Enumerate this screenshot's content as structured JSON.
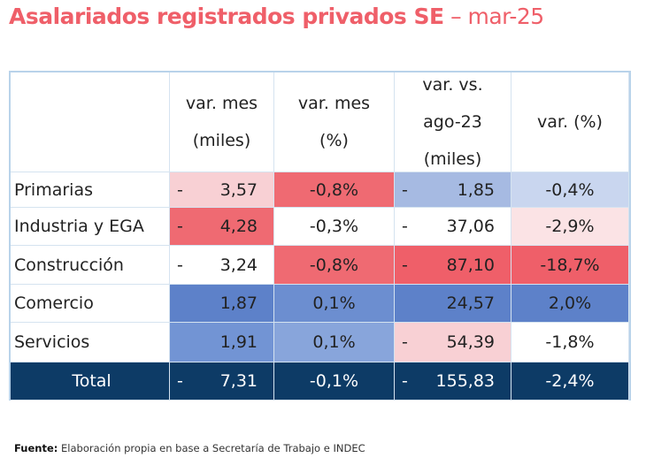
{
  "title": {
    "main": "Asalariados registrados privados SE",
    "suffix": "– mar-25"
  },
  "table": {
    "headers": [
      [],
      [
        "var. mes",
        "(miles)"
      ],
      [
        "var. mes",
        "(%)"
      ],
      [
        "var. vs.",
        "ago-23",
        "(miles)"
      ],
      [
        "var. (%)"
      ]
    ],
    "rows": [
      {
        "label": "Primarias",
        "cells": [
          {
            "sign": "-",
            "text": "3,57",
            "fill": "#f8d0d4"
          },
          {
            "text": "-0,8%",
            "fill": "#ef6a72"
          },
          {
            "sign": "-",
            "text": "1,85",
            "fill": "#a6bae2"
          },
          {
            "text": "-0,4%",
            "fill": "#c9d6ef"
          }
        ]
      },
      {
        "label": "Industria y EGA",
        "cells": [
          {
            "sign": "-",
            "text": "4,28",
            "fill": "#ef6a72"
          },
          {
            "text": "-0,3%",
            "fill": "#ffffff"
          },
          {
            "sign": "-",
            "text": "37,06",
            "fill": "#ffffff"
          },
          {
            "text": "-2,9%",
            "fill": "#fbe3e5"
          }
        ]
      },
      {
        "label": "Construcción",
        "cells": [
          {
            "sign": "-",
            "text": "3,24",
            "fill": "#ffffff"
          },
          {
            "text": "-0,8%",
            "fill": "#ef6a72"
          },
          {
            "sign": "-",
            "text": "87,10",
            "fill": "#ef5f69"
          },
          {
            "text": "-18,7%",
            "fill": "#ef5f69"
          }
        ]
      },
      {
        "label": "Comercio",
        "cells": [
          {
            "text": "1,87",
            "fill": "#5d81c9"
          },
          {
            "text": "0,1%",
            "fill": "#6c8ed0"
          },
          {
            "text": "24,57",
            "fill": "#5d81c9"
          },
          {
            "text": "2,0%",
            "fill": "#5d81c9"
          }
        ]
      },
      {
        "label": "Servicios",
        "cells": [
          {
            "text": "1,91",
            "fill": "#7294d4"
          },
          {
            "text": "0,1%",
            "fill": "#88a5db"
          },
          {
            "sign": "-",
            "text": "54,39",
            "fill": "#f8d0d4"
          },
          {
            "text": "-1,8%",
            "fill": "#ffffff"
          }
        ]
      }
    ],
    "total": {
      "label": "Total",
      "cells": [
        {
          "sign": "-",
          "text": "7,31"
        },
        {
          "text": "-0,1%"
        },
        {
          "sign": "-",
          "text": "155,83"
        },
        {
          "text": "-2,4%"
        }
      ],
      "fill": "#0d3b66"
    }
  },
  "footer": {
    "label": "Fuente:",
    "text": "Elaboración propia en base a Secretaría de Trabajo e INDEC"
  }
}
